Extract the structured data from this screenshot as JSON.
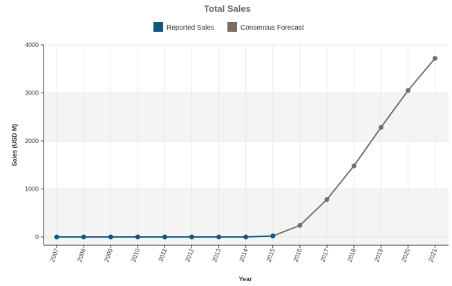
{
  "chart_data": {
    "type": "line",
    "title": "Total Sales",
    "xlabel": "Year",
    "ylabel": "Sales  (USD M)",
    "x": [
      "2007",
      "2008",
      "2009",
      "2010",
      "2011",
      "2012",
      "2013",
      "2014",
      "2015",
      "2016",
      "2017",
      "2018",
      "2019",
      "2020",
      "2021"
    ],
    "yticks": [
      "0",
      "1000",
      "2000",
      "3000",
      "4000"
    ],
    "ylim": [
      0,
      4000
    ],
    "grid": "alternating horizontal bands",
    "legend_position": "top-center",
    "series": [
      {
        "name": "Reported Sales",
        "color": "#0d5a7e",
        "values": [
          0,
          0,
          0,
          0,
          0,
          0,
          0,
          0,
          20,
          null,
          null,
          null,
          null,
          null,
          null
        ]
      },
      {
        "name": "Consensus Forecast",
        "color": "#7a6e64",
        "values": [
          null,
          null,
          null,
          null,
          null,
          null,
          null,
          null,
          20,
          240,
          780,
          1480,
          2280,
          3050,
          3720
        ]
      }
    ]
  }
}
